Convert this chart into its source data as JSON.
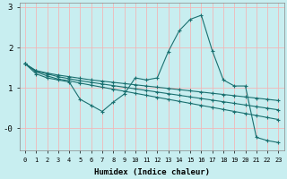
{
  "xlabel": "Humidex (Indice chaleur)",
  "bg_color": "#c8eef0",
  "grid_color": "#f0b8b8",
  "line_color": "#1a7070",
  "xlim": [
    -0.5,
    23.5
  ],
  "ylim": [
    -0.55,
    3.1
  ],
  "yticks": [
    0,
    1,
    2,
    3
  ],
  "ytick_labels": [
    "-0",
    "1",
    "2",
    "3"
  ],
  "series": [
    [
      1.6,
      1.35,
      1.25,
      1.2,
      1.15,
      0.72,
      0.57,
      0.42,
      0.65,
      0.85,
      1.25,
      1.2,
      1.25,
      1.9,
      2.42,
      2.7,
      2.8,
      1.92,
      1.2,
      1.05,
      1.05,
      -0.22,
      -0.3,
      -0.35
    ],
    [
      1.6,
      1.4,
      1.3,
      1.22,
      1.18,
      1.12,
      1.07,
      1.02,
      0.97,
      0.92,
      0.87,
      0.82,
      0.77,
      0.72,
      0.67,
      0.62,
      0.57,
      0.52,
      0.47,
      0.42,
      0.37,
      0.32,
      0.27,
      0.22
    ],
    [
      1.6,
      1.42,
      1.35,
      1.28,
      1.23,
      1.18,
      1.14,
      1.1,
      1.06,
      1.02,
      0.98,
      0.94,
      0.9,
      0.86,
      0.82,
      0.78,
      0.74,
      0.7,
      0.66,
      0.62,
      0.58,
      0.54,
      0.5,
      0.46
    ],
    [
      1.6,
      1.43,
      1.37,
      1.32,
      1.28,
      1.24,
      1.2,
      1.17,
      1.14,
      1.11,
      1.08,
      1.05,
      1.02,
      0.99,
      0.96,
      0.93,
      0.9,
      0.87,
      0.84,
      0.81,
      0.78,
      0.75,
      0.72,
      0.69
    ]
  ],
  "xtick_labels": [
    "0",
    "1",
    "2",
    "3",
    "4",
    "5",
    "6",
    "7",
    "8",
    "9",
    "10",
    "11",
    "12",
    "13",
    "14",
    "15",
    "16",
    "17",
    "18",
    "19",
    "20",
    "21",
    "22",
    "23"
  ]
}
